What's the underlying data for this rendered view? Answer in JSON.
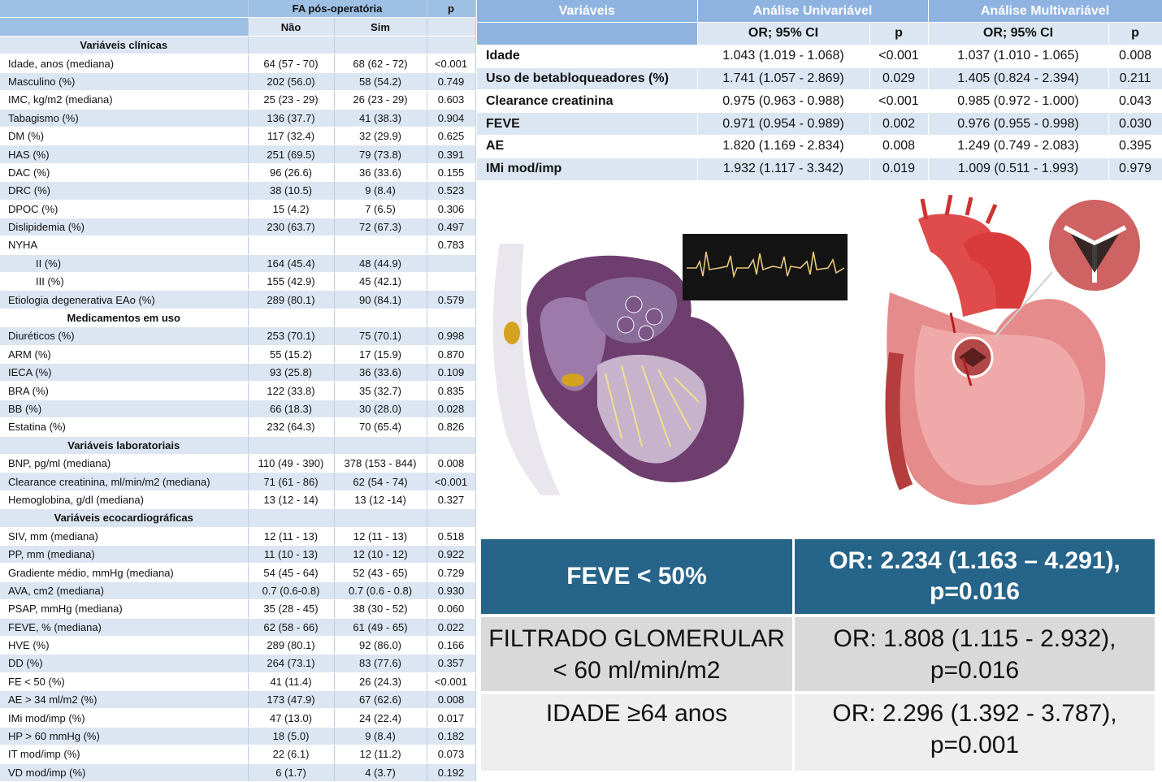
{
  "left_table": {
    "header": {
      "group": "FA pós-operatória",
      "p": "p",
      "col_nao": "Não",
      "col_sim": "Sim"
    },
    "rows": [
      {
        "type": "section",
        "label": "Variáveis clínicas"
      },
      {
        "label": "Idade, anos (mediana)",
        "nao": "64 (57 - 70)",
        "sim": "68 (62 - 72)",
        "p": "<0.001"
      },
      {
        "label": "Masculino (%)",
        "nao": "202 (56.0)",
        "sim": "58 (54.2)",
        "p": "0.749"
      },
      {
        "label": "IMC, kg/m2 (mediana)",
        "nao": "25 (23 - 29)",
        "sim": "26 (23 - 29)",
        "p": "0.603"
      },
      {
        "label": "Tabagismo (%)",
        "nao": "136 (37.7)",
        "sim": "41 (38.3)",
        "p": "0.904"
      },
      {
        "label": "DM (%)",
        "nao": "117 (32.4)",
        "sim": "32 (29.9)",
        "p": "0.625"
      },
      {
        "label": "HAS (%)",
        "nao": "251 (69.5)",
        "sim": "79 (73.8)",
        "p": "0.391"
      },
      {
        "label": "DAC (%)",
        "nao": "96 (26.6)",
        "sim": "36 (33.6)",
        "p": "0.155"
      },
      {
        "label": "DRC (%)",
        "nao": "38 (10.5)",
        "sim": "9 (8.4)",
        "p": "0.523"
      },
      {
        "label": "DPOC (%)",
        "nao": "15 (4.2)",
        "sim": "7 (6.5)",
        "p": "0.306"
      },
      {
        "label": "Dislipidemia (%)",
        "nao": "230 (63.7)",
        "sim": "72 (67.3)",
        "p": "0.497"
      },
      {
        "label": "NYHA",
        "nao": "",
        "sim": "",
        "p": "0.783"
      },
      {
        "label": "II (%)",
        "indent": true,
        "nao": "164 (45.4)",
        "sim": "48 (44.9)",
        "p": ""
      },
      {
        "label": "III (%)",
        "indent": true,
        "nao": "155 (42.9)",
        "sim": "45 (42.1)",
        "p": ""
      },
      {
        "label": "Etiologia degenerativa EAo (%)",
        "nao": "289 (80.1)",
        "sim": "90 (84.1)",
        "p": "0.579"
      },
      {
        "type": "section",
        "label": "Medicamentos em uso"
      },
      {
        "label": "Diuréticos (%)",
        "nao": "253 (70.1)",
        "sim": "75 (70.1)",
        "p": "0.998"
      },
      {
        "label": "ARM (%)",
        "nao": "55 (15.2)",
        "sim": "17 (15.9)",
        "p": "0.870"
      },
      {
        "label": "IECA (%)",
        "nao": "93 (25.8)",
        "sim": "36 (33.6)",
        "p": "0.109"
      },
      {
        "label": "BRA (%)",
        "nao": "122 (33.8)",
        "sim": "35 (32.7)",
        "p": "0.835"
      },
      {
        "label": "BB (%)",
        "nao": "66 (18.3)",
        "sim": "30 (28.0)",
        "p": "0.028"
      },
      {
        "label": "Estatina (%)",
        "nao": "232 (64.3)",
        "sim": "70 (65.4)",
        "p": "0.826"
      },
      {
        "type": "section",
        "label": "Variáveis laboratoriais"
      },
      {
        "label": "BNP, pg/ml (mediana)",
        "nao": "110 (49 - 390)",
        "sim": "378 (153 - 844)",
        "p": "0.008"
      },
      {
        "label": "Clearance creatinina, ml/min/m2 (mediana)",
        "nao": "71 (61 - 86)",
        "sim": "62 (54 - 74)",
        "p": "<0.001"
      },
      {
        "label": "Hemoglobina, g/dl (mediana)",
        "nao": "13 (12 - 14)",
        "sim": "13 (12 -14)",
        "p": "0.327"
      },
      {
        "type": "section",
        "label": "Variáveis ecocardiográficas"
      },
      {
        "label": "SIV, mm (mediana)",
        "nao": "12 (11 - 13)",
        "sim": "12 (11 - 13)",
        "p": "0.518"
      },
      {
        "label": "PP, mm (mediana)",
        "nao": "11 (10 - 13)",
        "sim": "12 (10 - 12)",
        "p": "0.922"
      },
      {
        "label": "Gradiente médio, mmHg (mediana)",
        "nao": "54 (45 - 64)",
        "sim": "52 (43 - 65)",
        "p": "0.729"
      },
      {
        "label": "AVA, cm2 (mediana)",
        "nao": "0.7 (0.6-0.8)",
        "sim": "0.7 (0.6 - 0.8)",
        "p": "0.930"
      },
      {
        "label": "PSAP, mmHg (mediana)",
        "nao": "35 (28 - 45)",
        "sim": "38 (30 - 52)",
        "p": "0.060"
      },
      {
        "label": "FEVE, % (mediana)",
        "nao": "62 (58 - 66)",
        "sim": "61 (49 - 65)",
        "p": "0.022"
      },
      {
        "label": "HVE (%)",
        "nao": "289 (80.1)",
        "sim": "92 (86.0)",
        "p": "0.166"
      },
      {
        "label": "DD (%)",
        "nao": "264 (73.1)",
        "sim": "83 (77.6)",
        "p": "0.357"
      },
      {
        "label": "FE < 50 (%)",
        "nao": "41 (11.4)",
        "sim": "26 (24.3)",
        "p": "<0.001"
      },
      {
        "label": "AE > 34 ml/m2 (%)",
        "nao": "173 (47.9)",
        "sim": "67 (62.6)",
        "p": "0.008"
      },
      {
        "label": "IMi mod/imp (%)",
        "nao": "47 (13.0)",
        "sim": "24 (22.4)",
        "p": "0.017"
      },
      {
        "label": "HP > 60 mmHg (%)",
        "nao": "18 (5.0)",
        "sim": "9 (8.4)",
        "p": "0.182"
      },
      {
        "label": "IT mod/imp (%)",
        "nao": "22 (6.1)",
        "sim": "12 (11.2)",
        "p": "0.073"
      },
      {
        "label": "VD mod/imp (%)",
        "nao": "6 (1.7)",
        "sim": "4 (3.7)",
        "p": "0.192"
      }
    ]
  },
  "right_table": {
    "header": {
      "variaveis": "Variáveis",
      "univariavel": "Análise Univariável",
      "multivariavel": "Análise Multivariável",
      "or_ci": "OR; 95% CI",
      "p": "p"
    },
    "rows": [
      {
        "label": "Idade",
        "uni_or": "1.043 (1.019 - 1.068)",
        "uni_p": "<0.001",
        "multi_or": "1.037 (1.010 - 1.065)",
        "multi_p": "0.008"
      },
      {
        "label": "Uso de betabloqueadores (%)",
        "uni_or": "1.741 (1.057 - 2.869)",
        "uni_p": "0.029",
        "multi_or": "1.405 (0.824 - 2.394)",
        "multi_p": "0.211"
      },
      {
        "label": "Clearance creatinina",
        "uni_or": "0.975 (0.963 - 0.988)",
        "uni_p": "<0.001",
        "multi_or": "0.985 (0.972 - 1.000)",
        "multi_p": "0.043"
      },
      {
        "label": "FEVE",
        "uni_or": "0.971 (0.954 - 0.989)",
        "uni_p": "0.002",
        "multi_or": "0.976 (0.955 - 0.998)",
        "multi_p": "0.030"
      },
      {
        "label": "AE",
        "uni_or": "1.820 (1.169 - 2.834)",
        "uni_p": "0.008",
        "multi_or": "1.249 (0.749 - 2.083)",
        "multi_p": "0.395"
      },
      {
        "label": "IMi mod/imp",
        "uni_or": "1.932 (1.117 - 3.342)",
        "uni_p": "0.019",
        "multi_or": "1.009 (0.511 - 1.993)",
        "multi_p": "0.979"
      }
    ]
  },
  "summary": [
    {
      "left": [
        "FEVE < 50%"
      ],
      "right": [
        "OR: 2.234 (1.163 – 4.291),",
        "p=0.016"
      ]
    },
    {
      "left": [
        "FILTRADO GLOMERULAR",
        "< 60 ml/min/m2"
      ],
      "right": [
        "OR: 1.808 (1.115 - 2.932),",
        "p=0.016"
      ]
    },
    {
      "left": [
        "IDADE ≥64 anos"
      ],
      "right": [
        "OR: 2.296 (1.392 - 3.787),",
        "p=0.001"
      ]
    }
  ],
  "colors": {
    "header_blue": "#9ec0e4",
    "band_blue": "#dce6f2",
    "summary_dark": "#266489",
    "summary_gray": "#d9d9d9",
    "summary_light": "#eeeeee"
  }
}
